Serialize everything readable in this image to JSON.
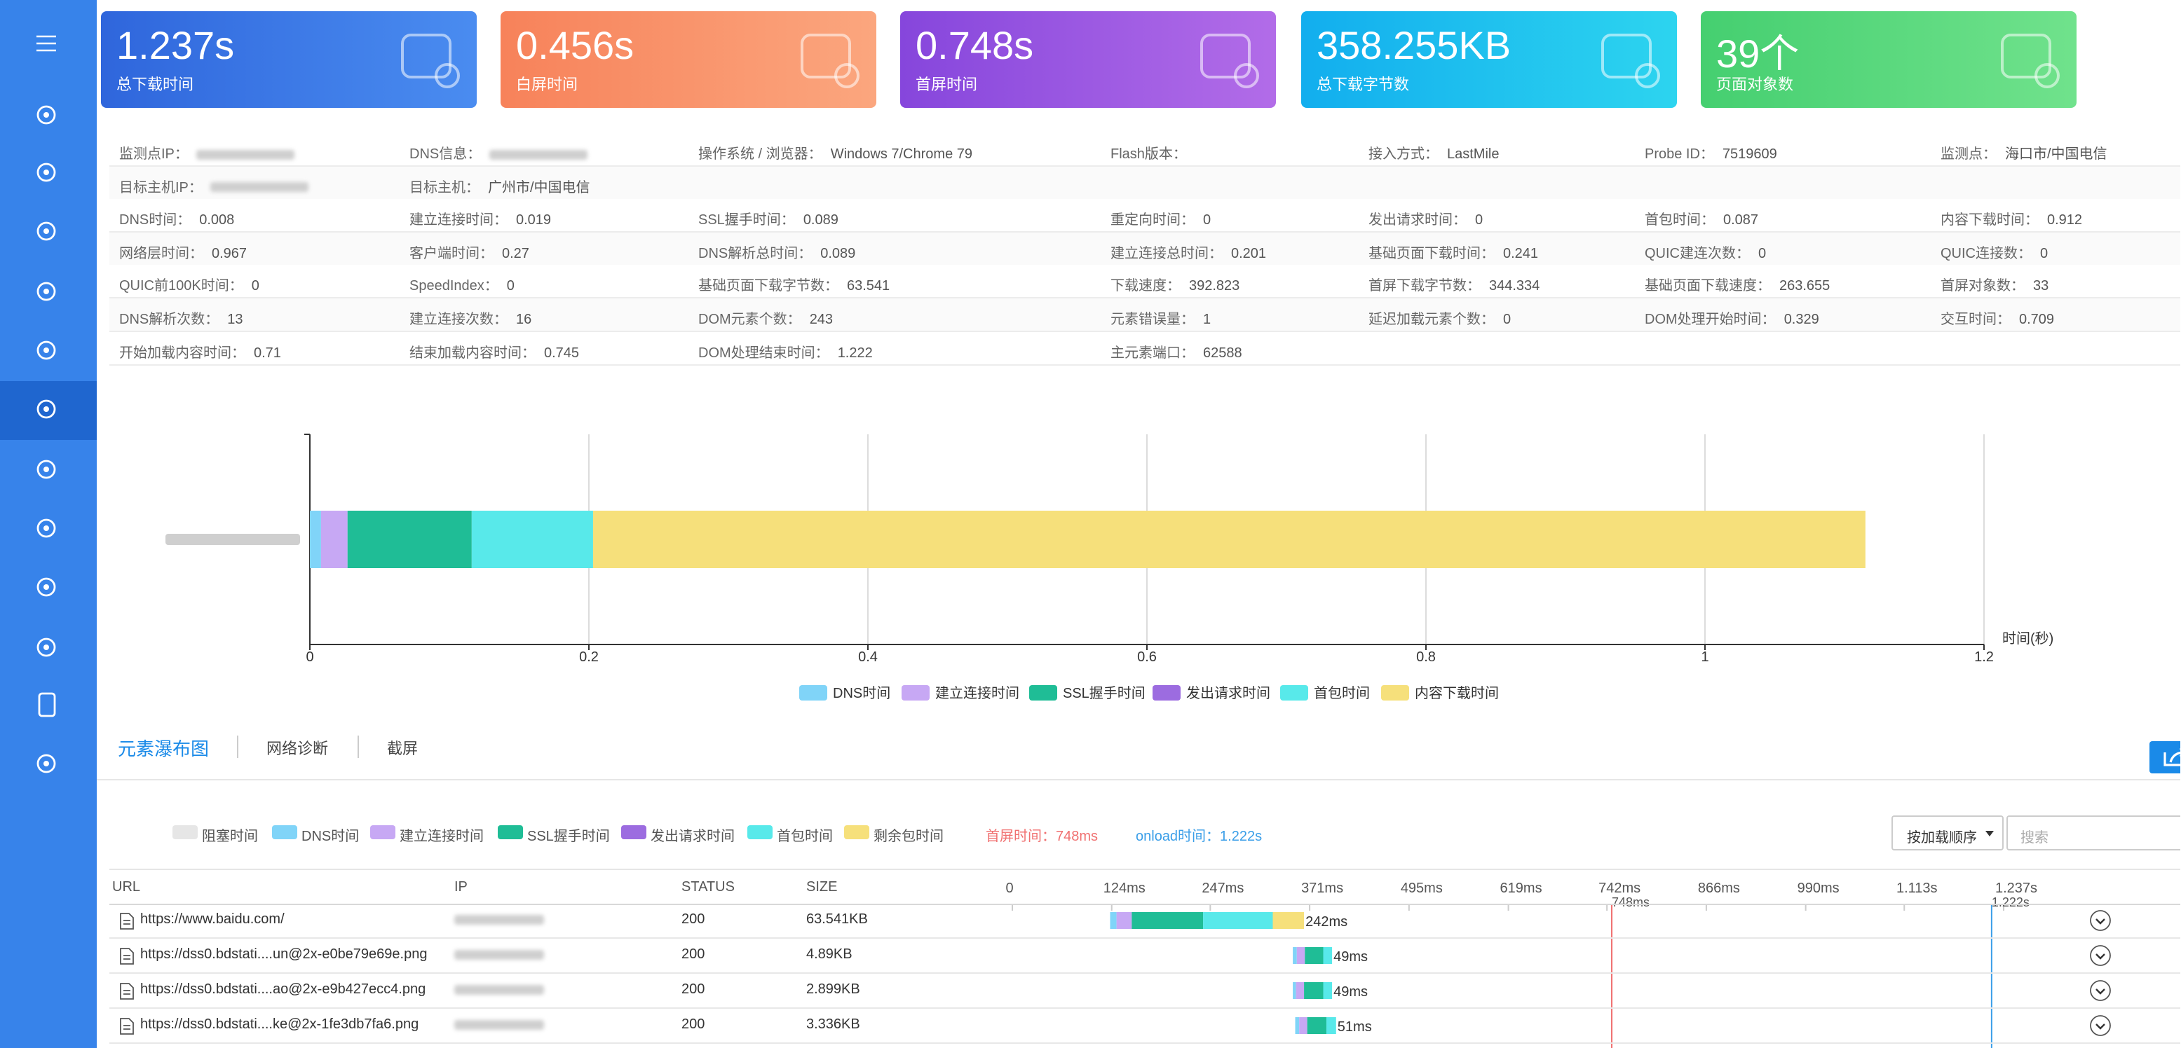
{
  "cards": [
    {
      "value": "1.237s",
      "label": "总下载时间"
    },
    {
      "value": "0.456s",
      "label": "白屏时间"
    },
    {
      "value": "0.748s",
      "label": "首屏时间"
    },
    {
      "value": "358.255KB",
      "label": "总下载字节数"
    },
    {
      "value": "39个",
      "label": "页面对象数"
    }
  ],
  "info_rows": [
    [
      {
        "label": "监测点IP："
      },
      {
        "label": "DNS信息："
      },
      {
        "label": "操作系统 / 浏览器：",
        "value": "Windows 7/Chrome 79"
      },
      {
        "label": "Flash版本："
      },
      {
        "label": "接入方式：",
        "value": "LastMile"
      },
      {
        "label": "Probe ID：",
        "value": 7519609
      },
      {
        "label": "监测点：",
        "value": "海口市/中国电信"
      }
    ],
    [
      {
        "label": "目标主机IP："
      },
      {
        "label": "目标主机：",
        "value": "广州市/中国电信"
      }
    ],
    [
      {
        "label": "DNS时间：",
        "value": 0.008
      },
      {
        "label": "建立连接时间：",
        "value": 0.019
      },
      {
        "label": "SSL握手时间：",
        "value": 0.089
      },
      {
        "label": "重定向时间：",
        "value": 0
      },
      {
        "label": "发出请求时间：",
        "value": 0
      },
      {
        "label": "首包时间：",
        "value": 0.087
      },
      {
        "label": "内容下载时间：",
        "value": 0.912
      }
    ],
    [
      {
        "label": "网络层时间：",
        "value": 0.967
      },
      {
        "label": "客户端时间：",
        "value": 0.27
      },
      {
        "label": "DNS解析总时间：",
        "value": 0.089
      },
      {
        "label": "建立连接总时间：",
        "value": 0.201
      },
      {
        "label": "基础页面下载时间：",
        "value": 0.241
      },
      {
        "label": "QUIC建连次数：",
        "value": 0
      },
      {
        "label": "QUIC连接数：",
        "value": 0
      }
    ],
    [
      {
        "label": "QUIC前100K时间：",
        "value": 0
      },
      {
        "label": "SpeedIndex：",
        "value": 0
      },
      {
        "label": "基础页面下载字节数：",
        "value": 63.541
      },
      {
        "label": "下载速度：",
        "value": 392.823
      },
      {
        "label": "首屏下载字节数：",
        "value": 344.334
      },
      {
        "label": "基础页面下载速度：",
        "value": 263.655
      },
      {
        "label": "首屏对象数：",
        "value": 33
      }
    ],
    [
      {
        "label": "DNS解析次数：",
        "value": 13
      },
      {
        "label": "建立连接次数：",
        "value": 16
      },
      {
        "label": "DOM元素个数：",
        "value": 243
      },
      {
        "label": "元素错误量：",
        "value": 1
      },
      {
        "label": "延迟加载元素个数：",
        "value": 0
      },
      {
        "label": "DOM处理开始时间：",
        "value": 0.329
      },
      {
        "label": "交互时间：",
        "value": 0.709
      }
    ],
    [
      {
        "label": "开始加载内容时间：",
        "value": 0.71
      },
      {
        "label": "结束加载内容时间：",
        "value": 0.745
      },
      {
        "label": "DOM处理结束时间：",
        "value": 1.222
      },
      {
        "label": "主元素端口：",
        "value": 62588
      }
    ]
  ],
  "chart_data": {
    "type": "stacked-bar-horizontal",
    "categories": [
      null
    ],
    "series": [
      {
        "name": "DNS时间",
        "color": "#80d4f8",
        "values": [
          0.008
        ]
      },
      {
        "name": "建立连接时间",
        "color": "#c7a8f4",
        "values": [
          0.019
        ]
      },
      {
        "name": "SSL握手时间",
        "color": "#1fbd96",
        "values": [
          0.089
        ]
      },
      {
        "name": "发出请求时间",
        "color": "#9c6ce0",
        "values": [
          0
        ]
      },
      {
        "name": "首包时间",
        "color": "#58e9ea",
        "values": [
          0.087
        ]
      },
      {
        "name": "内容下载时间",
        "color": "#f6e07b",
        "values": [
          0.912
        ]
      }
    ],
    "xlim": [
      0,
      1.2
    ],
    "xticks": [
      0,
      0.2,
      0.4,
      0.6,
      0.8,
      1,
      1.2
    ],
    "x_label": "时间(秒)",
    "grid": true,
    "legend": "bottom"
  },
  "tabs": [
    "元素瀑布图",
    "网络诊断",
    "截屏"
  ],
  "waterfall": {
    "legend": [
      {
        "name": "阻塞时间",
        "color": "#e6e6e6"
      },
      {
        "name": "DNS时间",
        "color": "#80d4f8"
      },
      {
        "name": "建立连接时间",
        "color": "#c7a8f4"
      },
      {
        "name": "SSL握手时间",
        "color": "#1fbd96"
      },
      {
        "name": "发出请求时间",
        "color": "#9c6ce0"
      },
      {
        "name": "首包时间",
        "color": "#58e9ea"
      },
      {
        "name": "剩余包时间",
        "color": "#f6e07b"
      }
    ],
    "first_screen": "首屏时间：748ms",
    "onload": "onload时间：1.222s",
    "sort_button": "按加载顺序",
    "search_placeholder": "搜索",
    "columns": [
      "URL",
      "IP",
      "STATUS",
      "SIZE"
    ],
    "timeline_lim": [
      0,
      1.237
    ],
    "timeline_ticks": [
      0,
      {
        "value": 0.124,
        "label": "124ms"
      },
      {
        "value": 0.247,
        "label": "247ms"
      },
      {
        "value": 0.371,
        "label": "371ms"
      },
      {
        "value": 0.495,
        "label": "495ms"
      },
      {
        "value": 0.619,
        "label": "619ms"
      },
      {
        "value": 0.742,
        "label": "742ms"
      },
      {
        "value": 0.866,
        "label": "866ms"
      },
      {
        "value": 0.99,
        "label": "990ms"
      },
      {
        "value": 1.113,
        "label": "1.113s"
      },
      {
        "value": 1.237,
        "label": "1.237s"
      }
    ],
    "markers": [
      {
        "value": 0.748,
        "label": "748ms",
        "color": "#f07070"
      },
      {
        "value": 1.222,
        "label": "1.222s",
        "color": "#3a9ee8"
      }
    ],
    "rows": [
      {
        "url": "https://www.baidu.com/",
        "status": 200,
        "size": "63.541KB",
        "start": 0.122,
        "segments": [
          0,
          0.008,
          0.019,
          0.089,
          0,
          0.087,
          0.039
        ],
        "total_label": "242ms"
      },
      {
        "url": "https://dss0.bdstati....un@2x-e0be79e69e.png",
        "status": 200,
        "size": "4.89KB",
        "start": 0.35,
        "segments": [
          0,
          0.005,
          0.01,
          0.023,
          0,
          0.011,
          0
        ],
        "total_label": "49ms"
      },
      {
        "url": "https://dss0.bdstati....ao@2x-e9b427ecc4.png",
        "status": 200,
        "size": "2.899KB",
        "start": 0.35,
        "segments": [
          0,
          0.004,
          0.01,
          0.024,
          0,
          0.011,
          0
        ],
        "total_label": "49ms"
      },
      {
        "url": "https://dss0.bdstati....ke@2x-1fe3db7fa6.png",
        "status": 200,
        "size": "3.336KB",
        "start": 0.353,
        "segments": [
          0,
          0.005,
          0.01,
          0.024,
          0,
          0.012,
          0
        ],
        "total_label": "51ms"
      }
    ]
  }
}
